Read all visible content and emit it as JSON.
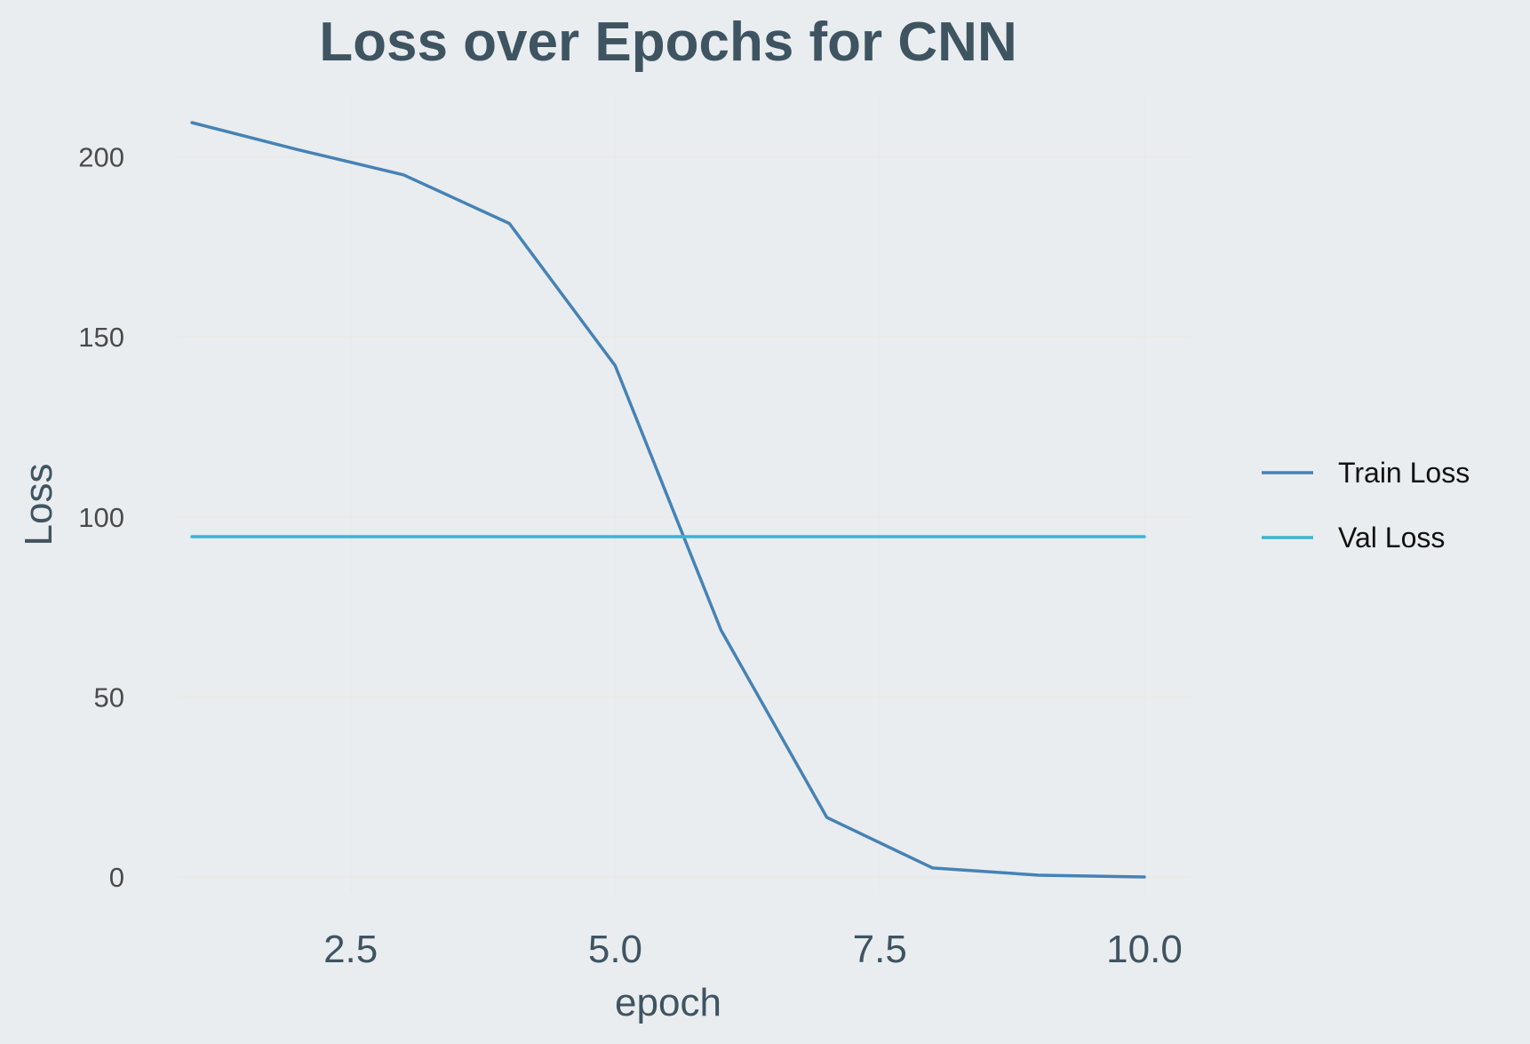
{
  "chart_data": {
    "type": "line",
    "title": "Loss over Epochs for CNN",
    "xlabel": "epoch",
    "ylabel": "Loss",
    "x": [
      1,
      2,
      3,
      4,
      5,
      6,
      7,
      8,
      9,
      10
    ],
    "series": [
      {
        "name": "Train Loss",
        "color": "#4682b4",
        "values": [
          209.5,
          202,
          195,
          181.5,
          142,
          68.5,
          16.5,
          2.5,
          0.5,
          0
        ]
      },
      {
        "name": "Val Loss",
        "color": "#3bb5cf",
        "values": [
          94.5,
          94.5,
          94.5,
          94.5,
          94.5,
          94.5,
          94.5,
          94.5,
          94.5,
          94.5
        ]
      }
    ],
    "xticks": [
      2.5,
      5.0,
      7.5,
      10.0
    ],
    "xtick_labels": [
      "2.5",
      "5.0",
      "7.5",
      "10.0"
    ],
    "yticks": [
      0,
      50,
      100,
      150,
      200
    ],
    "ytick_labels": [
      "0",
      "50",
      "100",
      "150",
      "200"
    ],
    "xlim": [
      1,
      10
    ],
    "ylim": [
      0,
      210
    ],
    "grid": true,
    "legend_position": "right"
  },
  "colors": {
    "background": "#e9edf0",
    "title": "#3f5461",
    "grid": "#ebe9e6"
  }
}
